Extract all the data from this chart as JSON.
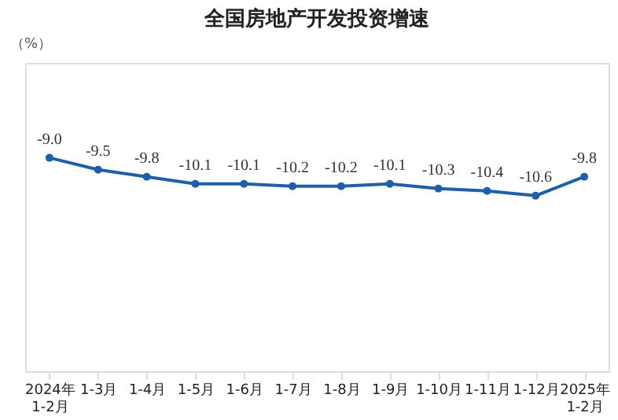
{
  "chart_data": {
    "type": "line",
    "title": "全国房地产开发投资增速",
    "ylabel": "（%）",
    "categories": [
      "2024年\n1-2月",
      "1-3月",
      "1-4月",
      "1-5月",
      "1-6月",
      "1-7月",
      "1-8月",
      "1-9月",
      "1-10月",
      "1-11月",
      "1-12月",
      "2025年\n1-2月"
    ],
    "series": [
      {
        "color": "#1f5fa8",
        "values": [
          -9.0,
          -9.5,
          -9.8,
          -10.1,
          -10.1,
          -10.2,
          -10.2,
          -10.1,
          -10.3,
          -10.4,
          -10.6,
          -9.8
        ],
        "value_labels": [
          "-9.0",
          "-9.5",
          "-9.8",
          "-10.1",
          "-10.1",
          "-10.2",
          "-10.2",
          "-10.1",
          "-10.3",
          "-10.4",
          "-10.6",
          "-9.8"
        ]
      }
    ],
    "ylim": [
      -18,
      -5
    ],
    "tick_labels": "x",
    "marker": "circle",
    "line_style": "solid"
  }
}
